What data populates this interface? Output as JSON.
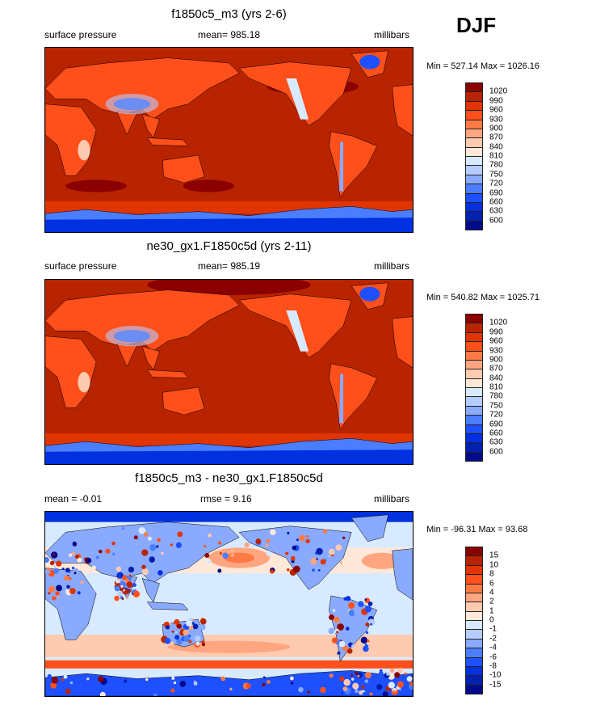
{
  "season": "DJF",
  "colors": [
    "#8b0000",
    "#b82400",
    "#e03500",
    "#ff4f1a",
    "#ff7a45",
    "#ffa680",
    "#ffcbb0",
    "#ffe8d8",
    "#d8eaff",
    "#b4ccff",
    "#8aaaff",
    "#4a7dff",
    "#1e50ff",
    "#0030e0",
    "#0020b0",
    "#000a8a"
  ],
  "panels": [
    {
      "title": "f1850c5_m3 (yrs 2-6)",
      "left_label": "surface pressure",
      "center_label": "mean= 985.18",
      "right_label": "millibars",
      "minmax": "Min = 527.14 Max = 1026.16",
      "kind": "abs",
      "levels": [
        "1020",
        "990",
        "960",
        "930",
        "900",
        "870",
        "840",
        "810",
        "780",
        "750",
        "720",
        "690",
        "660",
        "630",
        "600"
      ]
    },
    {
      "title": "ne30_gx1.F1850c5d (yrs 2-11)",
      "left_label": "surface pressure",
      "center_label": "mean= 985.19",
      "right_label": "millibars",
      "minmax": "Min = 540.82 Max = 1025.71",
      "kind": "abs2",
      "levels": [
        "1020",
        "990",
        "960",
        "930",
        "900",
        "870",
        "840",
        "810",
        "780",
        "750",
        "720",
        "690",
        "660",
        "630",
        "600"
      ]
    },
    {
      "title": "f1850c5_m3 - ne30_gx1.F1850c5d",
      "left_label": "mean =  -0.01",
      "center_label": "rmse =   9.16",
      "right_label": "millibars",
      "minmax": "Min = -96.31 Max =  93.68",
      "kind": "diff",
      "levels": [
        "15",
        "10",
        "8",
        "6",
        "4",
        "2",
        "1",
        "0",
        "-1",
        "-2",
        "-4",
        "-6",
        "-8",
        "-10",
        "-15"
      ]
    }
  ]
}
